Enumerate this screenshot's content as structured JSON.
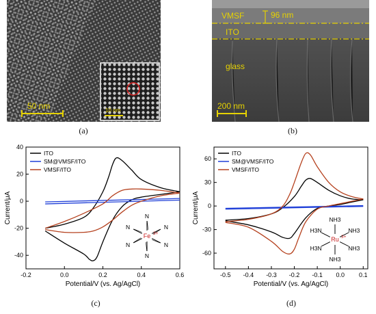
{
  "panel_a": {
    "caption": "(a)",
    "scale_bar": "50 nm",
    "inset_scale_bar": "10 nm"
  },
  "panel_b": {
    "caption": "(b)",
    "layer_vmsf": "VMSF",
    "thickness": "96 nm",
    "layer_ito": "ITO",
    "layer_glass": "glass",
    "scale_bar": "200 nm"
  },
  "chart_data": [
    {
      "type": "line",
      "panel": "(c)",
      "xlabel": "Potential/V (vs. Ag/AgCl)",
      "ylabel": "Current/μA",
      "xlim": [
        -0.2,
        0.6
      ],
      "ylim": [
        -50,
        40
      ],
      "xticks": [
        -0.2,
        0.0,
        0.2,
        0.4,
        0.6
      ],
      "yticks": [
        -40,
        -20,
        0,
        20,
        40
      ],
      "xtick_labels": [
        "-0.2",
        "0.0",
        "0.2",
        "0.4",
        "0.6"
      ],
      "ytick_labels": [
        "-40",
        "-20",
        "0",
        "20",
        "40"
      ],
      "legend_position": "top-left",
      "complex_label": {
        "center": "Fe",
        "charge": "3+",
        "ligand": "N"
      },
      "series": [
        {
          "name": "ITO",
          "color": "#000000",
          "forward": [
            [
              -0.1,
              -20
            ],
            [
              0.0,
              -17
            ],
            [
              0.1,
              -12
            ],
            [
              0.15,
              -5
            ],
            [
              0.2,
              7
            ],
            [
              0.23,
              18
            ],
            [
              0.25,
              27
            ],
            [
              0.27,
              32
            ],
            [
              0.3,
              30
            ],
            [
              0.35,
              23
            ],
            [
              0.4,
              16
            ],
            [
              0.5,
              10
            ],
            [
              0.6,
              7
            ]
          ],
          "backward": [
            [
              0.6,
              7
            ],
            [
              0.5,
              5
            ],
            [
              0.4,
              3
            ],
            [
              0.35,
              1
            ],
            [
              0.3,
              -4
            ],
            [
              0.25,
              -14
            ],
            [
              0.2,
              -30
            ],
            [
              0.17,
              -41
            ],
            [
              0.15,
              -44
            ],
            [
              0.13,
              -43
            ],
            [
              0.1,
              -39
            ],
            [
              0.0,
              -31
            ],
            [
              -0.1,
              -22
            ]
          ]
        },
        {
          "name": "SM@VMSF/ITO",
          "color": "#1f3fd8",
          "forward": [
            [
              -0.1,
              -0.5
            ],
            [
              0.6,
              2.0
            ]
          ],
          "backward": [
            [
              0.6,
              0.8
            ],
            [
              -0.1,
              -2.0
            ]
          ]
        },
        {
          "name": "VMSF/ITO",
          "color": "#b5411e",
          "forward": [
            [
              -0.1,
              -20
            ],
            [
              0.0,
              -15
            ],
            [
              0.1,
              -9
            ],
            [
              0.2,
              -2
            ],
            [
              0.25,
              4
            ],
            [
              0.3,
              8
            ],
            [
              0.35,
              9
            ],
            [
              0.4,
              9
            ],
            [
              0.5,
              8
            ],
            [
              0.6,
              6
            ]
          ],
          "backward": [
            [
              0.6,
              6
            ],
            [
              0.5,
              4
            ],
            [
              0.4,
              0
            ],
            [
              0.35,
              -3
            ],
            [
              0.3,
              -8
            ],
            [
              0.25,
              -14
            ],
            [
              0.2,
              -19
            ],
            [
              0.15,
              -22
            ],
            [
              0.1,
              -23
            ],
            [
              0.0,
              -23
            ],
            [
              -0.1,
              -21
            ]
          ]
        }
      ]
    },
    {
      "type": "line",
      "panel": "(d)",
      "xlabel": "Potential/V (vs. Ag/AgCl)",
      "ylabel": "Current/μA",
      "xlim": [
        -0.55,
        0.12
      ],
      "ylim": [
        -80,
        75
      ],
      "xticks": [
        -0.5,
        -0.4,
        -0.3,
        -0.2,
        -0.1,
        0.0,
        0.1
      ],
      "yticks": [
        -60,
        -30,
        0,
        30,
        60
      ],
      "xtick_labels": [
        "-0.5",
        "-0.4",
        "-0.3",
        "-0.2",
        "-0.1",
        "0.0",
        "0.1"
      ],
      "ytick_labels": [
        "-60",
        "-30",
        "0",
        "30",
        "60"
      ],
      "legend_position": "top-left",
      "complex_label": {
        "center": "Ru",
        "charge": "3+",
        "ligand": "NH3",
        "ligand_left": "H3N"
      },
      "series": [
        {
          "name": "ITO",
          "color": "#000000",
          "forward": [
            [
              -0.5,
              -18
            ],
            [
              -0.4,
              -16
            ],
            [
              -0.3,
              -10
            ],
            [
              -0.25,
              -2
            ],
            [
              -0.2,
              12
            ],
            [
              -0.17,
              25
            ],
            [
              -0.15,
              33
            ],
            [
              -0.13,
              35
            ],
            [
              -0.1,
              30
            ],
            [
              -0.05,
              20
            ],
            [
              0.0,
              13
            ],
            [
              0.05,
              9
            ],
            [
              0.1,
              8
            ]
          ],
          "backward": [
            [
              0.1,
              8
            ],
            [
              0.05,
              5
            ],
            [
              0.0,
              2
            ],
            [
              -0.05,
              0
            ],
            [
              -0.1,
              -3
            ],
            [
              -0.15,
              -15
            ],
            [
              -0.2,
              -35
            ],
            [
              -0.22,
              -41
            ],
            [
              -0.25,
              -40
            ],
            [
              -0.3,
              -33
            ],
            [
              -0.4,
              -24
            ],
            [
              -0.5,
              -19
            ]
          ]
        },
        {
          "name": "SM@VMSF/ITO",
          "color": "#1f3fd8",
          "forward": [
            [
              -0.5,
              -3
            ],
            [
              0.1,
              0.5
            ]
          ],
          "backward": [
            [
              0.1,
              -0.5
            ],
            [
              -0.5,
              -4
            ]
          ]
        },
        {
          "name": "VMSF/ITO",
          "color": "#b5411e",
          "forward": [
            [
              -0.5,
              -20
            ],
            [
              -0.4,
              -17
            ],
            [
              -0.3,
              -10
            ],
            [
              -0.25,
              0
            ],
            [
              -0.22,
              15
            ],
            [
              -0.2,
              30
            ],
            [
              -0.17,
              55
            ],
            [
              -0.15,
              67
            ],
            [
              -0.13,
              65
            ],
            [
              -0.1,
              50
            ],
            [
              -0.05,
              30
            ],
            [
              0.0,
              18
            ],
            [
              0.05,
              12
            ],
            [
              0.1,
              9
            ]
          ],
          "backward": [
            [
              0.1,
              9
            ],
            [
              0.05,
              6
            ],
            [
              0.0,
              3
            ],
            [
              -0.05,
              0
            ],
            [
              -0.1,
              -4
            ],
            [
              -0.15,
              -20
            ],
            [
              -0.18,
              -40
            ],
            [
              -0.2,
              -55
            ],
            [
              -0.22,
              -61
            ],
            [
              -0.25,
              -58
            ],
            [
              -0.3,
              -45
            ],
            [
              -0.4,
              -27
            ],
            [
              -0.5,
              -21
            ]
          ]
        }
      ]
    }
  ],
  "captions": {
    "c": "(c)",
    "d": "(d)"
  }
}
